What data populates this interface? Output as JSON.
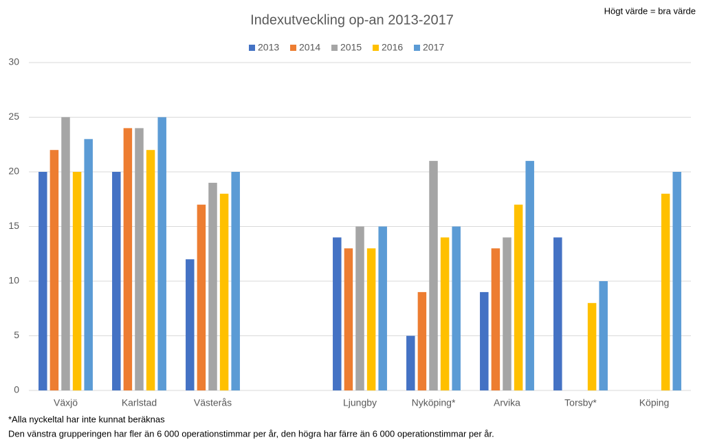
{
  "chart_data": {
    "type": "bar",
    "title": "Indexutveckling op-an 2013-2017",
    "annotation": "Högt värde = bra värde",
    "footnotes": [
      "*Alla nyckeltal har inte kunnat beräknas",
      "Den vänstra grupperingen har fler än 6 000 operationstimmar per år, den högra har färre än 6 000 operationstimmar per år."
    ],
    "categories": [
      "Växjö",
      "Karlstad",
      "Västerås",
      null,
      "Ljungby",
      "Nyköping*",
      "Arvika",
      "Torsby*",
      "Köping"
    ],
    "series": [
      {
        "name": "2013",
        "color": "#4472c4",
        "values": [
          20,
          20,
          12,
          null,
          14,
          5,
          9,
          14,
          null
        ]
      },
      {
        "name": "2014",
        "color": "#ed7d31",
        "values": [
          22,
          24,
          17,
          null,
          13,
          9,
          13,
          null,
          null
        ]
      },
      {
        "name": "2015",
        "color": "#a5a5a5",
        "values": [
          25,
          24,
          19,
          null,
          15,
          21,
          14,
          null,
          null
        ]
      },
      {
        "name": "2016",
        "color": "#ffc000",
        "values": [
          20,
          22,
          18,
          null,
          13,
          14,
          17,
          8,
          18
        ]
      },
      {
        "name": "2017",
        "color": "#5b9bd5",
        "values": [
          23,
          25,
          20,
          null,
          15,
          15,
          21,
          10,
          20
        ]
      }
    ],
    "ylim": [
      0,
      30
    ],
    "yticks": [
      0,
      5,
      10,
      15,
      20,
      25,
      30
    ],
    "grid": true,
    "legend": "top"
  }
}
